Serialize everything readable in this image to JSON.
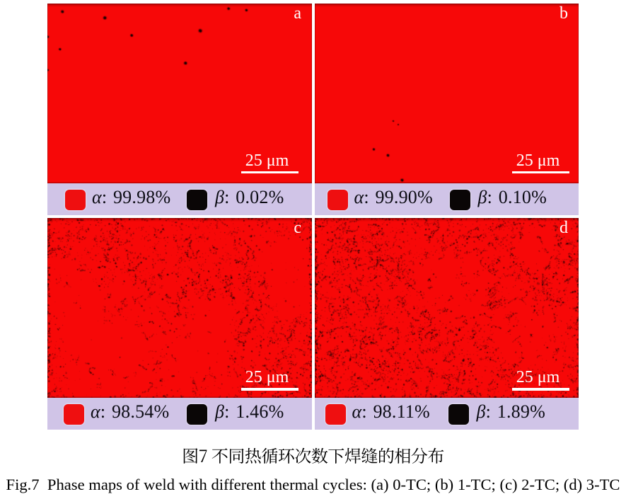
{
  "figure": {
    "panels": [
      {
        "id": "a",
        "label": "a",
        "condition": "0-TC",
        "scale_bar": "25 μm",
        "legend": [
          {
            "symbol": "α",
            "text": ": 99.98%"
          },
          {
            "symbol": "β",
            "text": ": 0.02%"
          }
        ],
        "alpha_pct": 99.98,
        "beta_pct": 0.02,
        "speckle": {
          "seed": 11,
          "base": 0,
          "clusters": 0,
          "edge": 0,
          "dots": [
            [
              21.3,
              11.5,
              1.8
            ],
            [
              81.3,
              20.2,
              2.0
            ],
            [
              119.2,
              45.0,
              1.7
            ],
            [
              216.2,
              38.5,
              2.2
            ],
            [
              256.2,
              7.2,
              1.7
            ],
            [
              281.4,
              9.4,
              1.6
            ],
            [
              17.8,
              64.6,
              1.5
            ],
            [
              195.3,
              84.2,
              1.9
            ],
            [
              0.5,
              47,
              1.5
            ],
            [
              0.5,
              94,
              1.3
            ]
          ]
        }
      },
      {
        "id": "b",
        "label": "b",
        "condition": "1-TC",
        "scale_bar": "25 μm",
        "legend": [
          {
            "symbol": "α",
            "text": ": 99.90%"
          },
          {
            "symbol": "β",
            "text": ": 0.10%"
          }
        ],
        "alpha_pct": 99.9,
        "beta_pct": 0.1,
        "speckle": {
          "seed": 22,
          "base": 0,
          "clusters": 0,
          "edge": 0,
          "dots": [
            [
              111,
              166,
              1.0
            ],
            [
              83.5,
              206,
              1.5
            ],
            [
              103.5,
              214.5,
              1.7
            ],
            [
              123.5,
              249.5,
              1.8
            ],
            [
              118,
              171,
              0.9
            ]
          ]
        }
      },
      {
        "id": "c",
        "label": "c",
        "condition": "2-TC",
        "scale_bar": "25 μm",
        "legend": [
          {
            "symbol": "α",
            "text": ": 98.54%"
          },
          {
            "symbol": "β",
            "text": ": 1.46%"
          }
        ],
        "alpha_pct": 98.54,
        "beta_pct": 1.46,
        "speckle": {
          "seed": 33,
          "base": 1450,
          "clusters": 265,
          "clusterSize": 9,
          "walks": 225,
          "edge": 360,
          "voids": 6,
          "dots": []
        }
      },
      {
        "id": "d",
        "label": "d",
        "condition": "3-TC",
        "scale_bar": "25 μm",
        "legend": [
          {
            "symbol": "α",
            "text": ": 98.11%"
          },
          {
            "symbol": "β",
            "text": ": 1.89%"
          }
        ],
        "alpha_pct": 98.11,
        "beta_pct": 1.89,
        "speckle": {
          "seed": 44,
          "base": 1900,
          "clusters": 345,
          "clusterSize": 10,
          "walks": 295,
          "edge": 420,
          "voids": 3,
          "dots": []
        }
      }
    ]
  },
  "captions": {
    "chinese": "图7 不同热循环次数下焊缝的相分布",
    "english": "Fig.7  Phase maps of weld with different thermal cycles: (a) 0-TC; (b) 1-TC; (c) 2-TC; (d) 3-TC"
  },
  "chart_data": {
    "type": "table",
    "title": "Phase fractions by number of thermal cycles",
    "categories": [
      "0-TC",
      "1-TC",
      "2-TC",
      "3-TC"
    ],
    "series": [
      {
        "name": "α phase (%)",
        "values": [
          99.98,
          99.9,
          98.54,
          98.11
        ]
      },
      {
        "name": "β phase (%)",
        "values": [
          0.02,
          0.1,
          1.46,
          1.89
        ]
      }
    ]
  },
  "colors": {
    "alpha_phase_red": "#f70808",
    "beta_phase_black": "#0a0606",
    "legend_background": "#d0c4e7",
    "page_background": "#ffffff",
    "annotation_white": "#ffffff"
  }
}
